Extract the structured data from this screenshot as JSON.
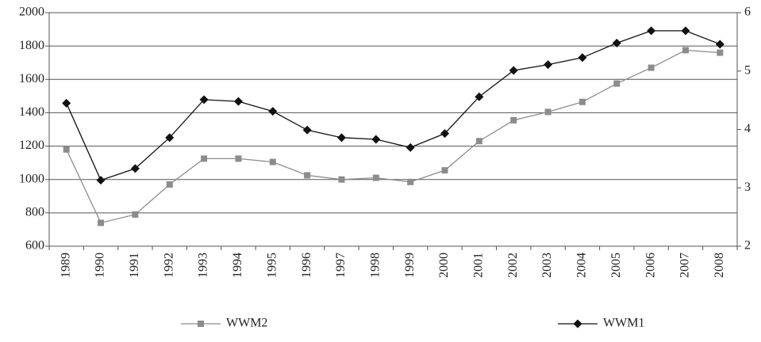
{
  "chart_data": {
    "type": "line",
    "categories": [
      "1989",
      "1990",
      "1991",
      "1992",
      "1993",
      "1994",
      "1995",
      "1996",
      "1997",
      "1998",
      "1999",
      "2000",
      "2001",
      "2002",
      "2003",
      "2004",
      "2005",
      "2006",
      "2007",
      "2008"
    ],
    "series": [
      {
        "name": "WWM2",
        "color": "#8c8c8c",
        "marker": "square",
        "values": [
          1180,
          740,
          790,
          970,
          1125,
          1125,
          1105,
          1025,
          1000,
          1010,
          985,
          1055,
          1230,
          1355,
          1405,
          1465,
          1575,
          1670,
          1775,
          1760
        ]
      },
      {
        "name": "WWM1",
        "color": "#111111",
        "marker": "diamond",
        "axis": "y2",
        "values": [
          4.45,
          3.13,
          3.33,
          3.86,
          4.51,
          4.48,
          4.31,
          3.99,
          3.86,
          3.83,
          3.69,
          3.93,
          4.56,
          5.01,
          5.11,
          5.23,
          5.48,
          5.69,
          5.69,
          5.46
        ]
      }
    ],
    "ylim": [
      600,
      2000
    ],
    "yticks": [
      600,
      800,
      1000,
      1200,
      1400,
      1600,
      1800,
      2000
    ],
    "y2lim": [
      2,
      6
    ],
    "y2ticks": [
      2,
      3,
      4,
      5,
      6
    ],
    "grid": true,
    "legend": "bottom"
  }
}
